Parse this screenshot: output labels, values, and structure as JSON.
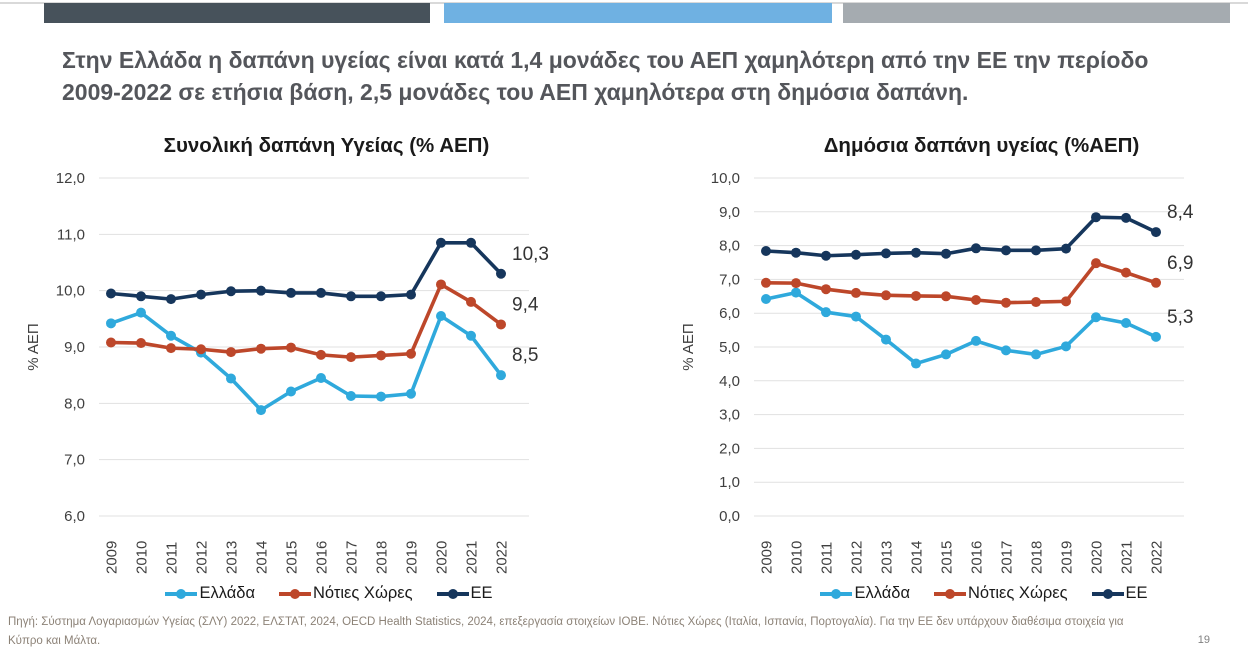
{
  "header": {
    "title": "Στην Ελλάδα η δαπάνη υγείας είναι κατά 1,4 μονάδες του ΑΕΠ χαμηλότερη από την ΕΕ την περίοδο 2009-2022 σε ετήσια βάση, 2,5 μονάδες του ΑΕΠ χαμηλότερα στη δημόσια δαπάνη."
  },
  "theme": {
    "topbar_dark": "#47525B",
    "topbar_blue": "#6FB1E2",
    "topbar_gray": "#A5ABB0",
    "headline_color": "#54565B",
    "gridline_color": "#E1E1E1",
    "greece_color": "#2FA9DC",
    "southern_color": "#BD472A",
    "eu_color": "#16365C"
  },
  "chart_data": [
    {
      "type": "line",
      "title": "Συνολική δαπάνη Υγείας (% ΑΕΠ)",
      "xlabel": "",
      "ylabel": "% ΑΕΠ",
      "ylim": [
        6,
        12
      ],
      "ytick_step": 1,
      "grid": true,
      "legend_position": "bottom",
      "categories": [
        "2009",
        "2010",
        "2011",
        "2012",
        "2013",
        "2014",
        "2015",
        "2016",
        "2017",
        "2018",
        "2019",
        "2020",
        "2021",
        "2022"
      ],
      "series": [
        {
          "name": "Ελλάδα",
          "color": "#2FA9DC",
          "end_label": "8,5",
          "values": [
            9.42,
            9.61,
            9.2,
            8.9,
            8.44,
            7.88,
            8.21,
            8.45,
            8.13,
            8.12,
            8.17,
            9.55,
            9.2,
            8.5
          ]
        },
        {
          "name": "Νότιες Χώρες",
          "color": "#BD472A",
          "end_label": "9,4",
          "values": [
            9.08,
            9.07,
            8.98,
            8.96,
            8.91,
            8.97,
            8.99,
            8.86,
            8.82,
            8.85,
            8.88,
            10.11,
            9.8,
            9.4
          ]
        },
        {
          "name": "ΕΕ",
          "color": "#16365C",
          "end_label": "10,3",
          "values": [
            9.95,
            9.9,
            9.85,
            9.93,
            9.99,
            10.0,
            9.96,
            9.96,
            9.9,
            9.9,
            9.93,
            10.85,
            10.85,
            10.3
          ]
        }
      ]
    },
    {
      "type": "line",
      "title": "Δημόσια δαπάνη υγείας (%ΑΕΠ)",
      "xlabel": "",
      "ylabel": "% ΑΕΠ",
      "ylim": [
        0,
        10
      ],
      "ytick_step": 1,
      "grid": true,
      "legend_position": "bottom",
      "categories": [
        "2009",
        "2010",
        "2011",
        "2012",
        "2013",
        "2014",
        "2015",
        "2016",
        "2017",
        "2018",
        "2019",
        "2020",
        "2021",
        "2022"
      ],
      "series": [
        {
          "name": "Ελλάδα",
          "color": "#2FA9DC",
          "end_label": "5,3",
          "values": [
            6.42,
            6.61,
            6.03,
            5.9,
            5.22,
            4.51,
            4.78,
            5.18,
            4.9,
            4.78,
            5.02,
            5.88,
            5.71,
            5.3
          ]
        },
        {
          "name": "Νότιες Χώρες",
          "color": "#BD472A",
          "end_label": "6,9",
          "values": [
            6.9,
            6.89,
            6.71,
            6.6,
            6.53,
            6.51,
            6.5,
            6.39,
            6.31,
            6.33,
            6.35,
            7.48,
            7.2,
            6.9
          ]
        },
        {
          "name": "ΕΕ",
          "color": "#16365C",
          "end_label": "8,4",
          "values": [
            7.84,
            7.79,
            7.7,
            7.73,
            7.77,
            7.79,
            7.76,
            7.92,
            7.86,
            7.86,
            7.91,
            8.84,
            8.82,
            8.4
          ]
        }
      ]
    }
  ],
  "footer": {
    "source": "Πηγή: Σύστημα Λογαριασμών Υγείας (ΣΛΥ) 2022, ΕΛΣΤΑΤ, 2024, OECD Health Statistics, 2024, επεξεργασία στοιχείων ΙΟΒΕ. Νότιες Χώρες (Ιταλία, Ισπανία, Πορτογαλία). Για την ΕΕ δεν υπάρχουν διαθέσιμα στοιχεία για Κύπρο και Μάλτα.",
    "page_number": "19"
  }
}
